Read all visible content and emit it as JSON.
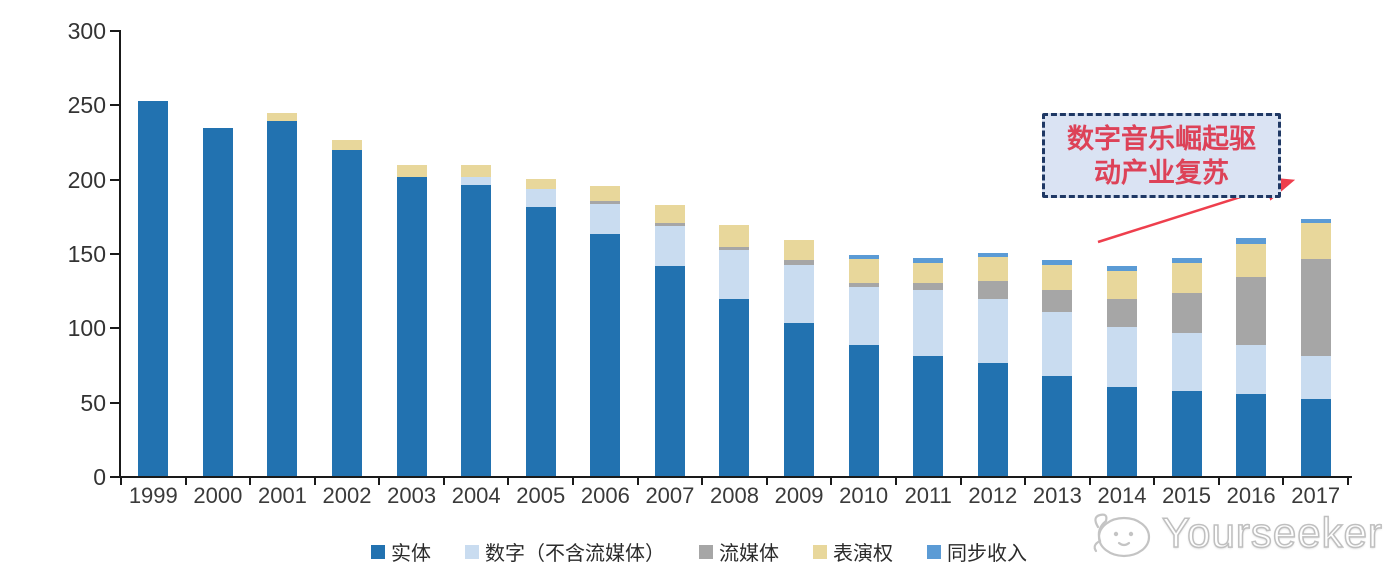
{
  "chart_data": {
    "type": "bar",
    "stacked": true,
    "title": "",
    "xlabel": "",
    "ylabel": "",
    "ylim": [
      0,
      300
    ],
    "yticks": [
      "0",
      "50",
      "100",
      "150",
      "200",
      "250",
      "300"
    ],
    "grid": false,
    "legend_position": "bottom",
    "categories": [
      "1999",
      "2000",
      "2001",
      "2002",
      "2003",
      "2004",
      "2005",
      "2006",
      "2007",
      "2008",
      "2009",
      "2010",
      "2011",
      "2012",
      "2013",
      "2014",
      "2015",
      "2016",
      "2017"
    ],
    "series": [
      {
        "key": "physical",
        "name": "实体",
        "color": "#2272b0",
        "values": [
          252,
          234,
          239,
          219,
          201,
          196,
          181,
          163,
          141,
          119,
          103,
          88,
          81,
          76,
          67,
          60,
          57,
          55,
          52
        ]
      },
      {
        "key": "digital-excl-streaming",
        "name": "数字（不含流媒体）",
        "color": "#c9dcf0",
        "values": [
          0,
          0,
          0,
          0,
          0,
          5,
          12,
          20,
          27,
          33,
          39,
          39,
          44,
          43,
          43,
          40,
          39,
          33,
          29
        ]
      },
      {
        "key": "streaming",
        "name": "流媒体",
        "color": "#a6a6a6",
        "values": [
          0,
          0,
          0,
          0,
          0,
          0,
          0,
          2,
          2,
          2,
          3,
          3,
          5,
          12,
          15,
          19,
          27,
          46,
          65
        ]
      },
      {
        "key": "performance-rights",
        "name": "表演权",
        "color": "#e8d79b",
        "values": [
          0,
          0,
          5,
          7,
          8,
          8,
          7,
          10,
          12,
          15,
          14,
          16,
          13,
          16,
          17,
          19,
          20,
          22,
          24
        ]
      },
      {
        "key": "sync-revenue",
        "name": "同步收入",
        "color": "#5b9bd5",
        "values": [
          0,
          0,
          0,
          0,
          0,
          0,
          0,
          0,
          0,
          0,
          0,
          3,
          4,
          3,
          3,
          3,
          4,
          4,
          3
        ]
      }
    ]
  },
  "annotation": {
    "line1": "数字音乐崛起驱",
    "line2": "动产业复苏",
    "text_color": "#dd4258",
    "box_fill": "#dae3f3",
    "box_border": "#1f3864",
    "arrow_color": "#ee3f4d"
  },
  "watermark": {
    "text": "Yourseeker"
  }
}
